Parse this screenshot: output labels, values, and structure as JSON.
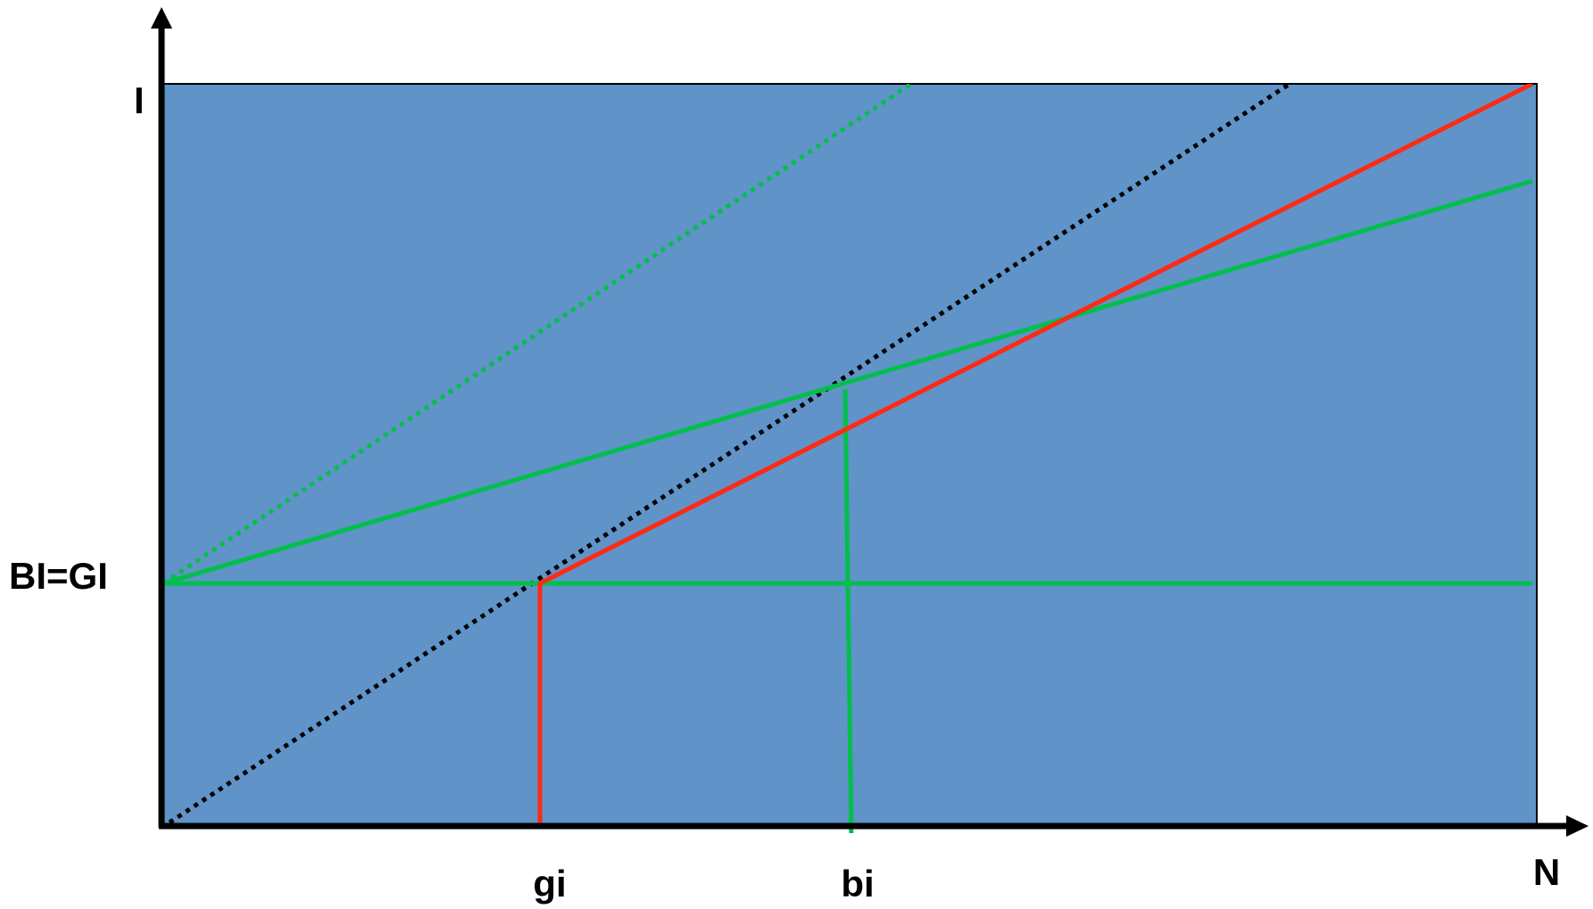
{
  "diagram": {
    "y_axis_label": "I",
    "x_axis_label": "N",
    "level_label": "BI=GI",
    "x_marker_labels": {
      "gi": "gi",
      "bi": "bi"
    }
  },
  "colors": {
    "background": "#ffffff",
    "plot_area": "#6093c8",
    "axis": "#000000",
    "red_line": "#ff2a12",
    "green_line": "#00c04a",
    "black_dotted": "#000000",
    "green_dotted": "#00c04a"
  }
}
